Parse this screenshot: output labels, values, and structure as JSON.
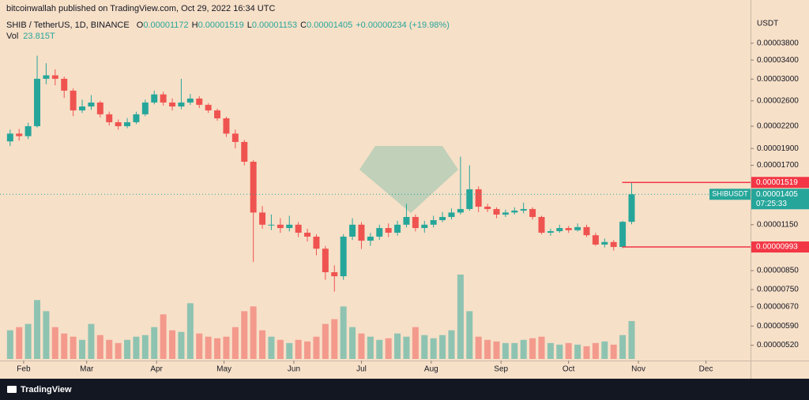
{
  "chart_data": {
    "type": "candlestick",
    "published": "bitcoinwallah published on TradingView.com, Oct 29, 2022 16:34 UTC",
    "symbol": "SHIB / TetherUS, 1D, BINANCE",
    "ohlc": [
      [
        "O",
        "0.00001172"
      ],
      [
        "H",
        "0.00001519"
      ],
      [
        "L",
        "0.00001153"
      ],
      [
        "C",
        "0.00001405"
      ]
    ],
    "change": "+0.00000234 (+19.98%)",
    "volume_label": "Vol",
    "volume_text": "23.815T",
    "currency": "USDT",
    "ticker": "SHIBUSDT",
    "countdown": "07:25:33",
    "brand": "TradingView",
    "log_scale": true,
    "up_color": "#26a69a",
    "down_color": "#ef5350",
    "x": [
      26,
      30,
      34,
      38,
      42,
      46,
      50,
      54,
      58,
      62,
      66,
      70,
      74,
      78,
      82,
      86,
      90,
      94,
      98,
      102,
      106,
      110,
      114,
      118,
      122,
      126,
      130,
      134,
      138,
      142,
      146,
      150,
      154,
      158,
      162,
      166,
      170,
      174,
      178,
      182,
      186,
      190,
      194,
      198,
      202,
      206,
      210,
      214,
      218,
      222,
      226,
      230,
      234,
      238,
      242,
      246,
      250,
      254,
      258,
      262,
      266,
      270,
      274,
      278,
      282,
      286,
      290,
      294,
      298,
      302
    ],
    "open": [
      1.99e-05,
      2.095e-05,
      2.06e-05,
      2.2e-05,
      3.006e-05,
      3.075e-05,
      3.006e-05,
      2.78e-05,
      2.441e-05,
      2.505e-05,
      2.571e-05,
      2.379e-05,
      2.258e-05,
      2.2e-05,
      2.258e-05,
      2.379e-05,
      2.571e-05,
      2.712e-05,
      2.571e-05,
      2.505e-05,
      2.571e-05,
      2.639e-05,
      2.532e-05,
      2.441e-05,
      2.317e-05,
      2.095e-05,
      1.983e-05,
      1.741e-05,
      1.246e-05,
      1.15e-05,
      1.15e-05,
      1.125e-05,
      1.15e-05,
      1.091e-05,
      1.063e-05,
      9.82e-06,
      8.41e-06,
      8.19e-06,
      1.063e-05,
      1.15e-05,
      1.035e-05,
      1.063e-05,
      1.125e-05,
      1.091e-05,
      1.15e-05,
      1.21e-05,
      1.125e-05,
      1.15e-05,
      1.185e-05,
      1.21e-05,
      1.246e-05,
      1.275e-05,
      1.452e-05,
      1.295e-05,
      1.275e-05,
      1.229e-05,
      1.246e-05,
      1.262e-05,
      1.275e-05,
      1.21e-05,
      1.091e-05,
      1.102e-05,
      1.125e-05,
      1.109e-05,
      1.132e-05,
      1.073e-05,
      1.009e-05,
      1.026e-05,
      9.93e-06,
      1.172e-05
    ],
    "high": [
      2.15e-05,
      2.16e-05,
      2.25e-05,
      3.5e-05,
      3.33e-05,
      3.2e-05,
      3.05e-05,
      2.82e-05,
      2.62e-05,
      2.7e-05,
      2.6e-05,
      2.42e-05,
      2.3e-05,
      2.32e-05,
      2.42e-05,
      2.62e-05,
      2.78e-05,
      2.76e-05,
      2.64e-05,
      3.006e-05,
      2.72e-05,
      2.68e-05,
      2.56e-05,
      2.47e-05,
      2.34e-05,
      2.15e-05,
      2.01e-05,
      1.76e-05,
      1.3e-05,
      1.23e-05,
      1.2e-05,
      1.22e-05,
      1.17e-05,
      1.12e-05,
      1.08e-05,
      1e-05,
      8.8e-06,
      1.08e-05,
      1.2e-05,
      1.17e-05,
      1.09e-05,
      1.15e-05,
      1.16e-05,
      1.18e-05,
      1.32e-05,
      1.23e-05,
      1.18e-05,
      1.22e-05,
      1.25e-05,
      1.28e-05,
      1.8e-05,
      1.7e-05,
      1.48e-05,
      1.32e-05,
      1.29e-05,
      1.27e-05,
      1.29e-05,
      1.33e-05,
      1.29e-05,
      1.22e-05,
      1.12e-05,
      1.15e-05,
      1.14e-05,
      1.16e-05,
      1.15e-05,
      1.09e-05,
      1.05e-05,
      1.04e-05,
      1.18e-05,
      1.519e-05
    ],
    "low": [
      1.93e-05,
      2e-05,
      2.02e-05,
      2.18e-05,
      2.9e-05,
      2.88e-05,
      2.65e-05,
      2.35e-05,
      2.4e-05,
      2.45e-05,
      2.33e-05,
      2.21e-05,
      2.15e-05,
      2.17e-05,
      2.23e-05,
      2.35e-05,
      2.54e-05,
      2.52e-05,
      2.44e-05,
      2.46e-05,
      2.53e-05,
      2.48e-05,
      2.4e-05,
      2.28e-05,
      2.05e-05,
      1.9e-05,
      1.7e-05,
      9e-06,
      1.12e-05,
      1.11e-05,
      1.09e-05,
      1.1e-05,
      1.06e-05,
      1.03e-05,
      9.4e-06,
      8e-06,
      7.4e-06,
      8e-06,
      1.04e-05,
      9.8e-06,
      1e-05,
      1.04e-05,
      1.06e-05,
      1.07e-05,
      1.13e-05,
      1.1e-05,
      1.09e-05,
      1.13e-05,
      1.17e-05,
      1.19e-05,
      1.23e-05,
      1.26e-05,
      1.25e-05,
      1.25e-05,
      1.2e-05,
      1.21e-05,
      1.23e-05,
      1.24e-05,
      1.19e-05,
      1.08e-05,
      1.07e-05,
      1.09e-05,
      1.09e-05,
      1.1e-05,
      1.06e-05,
      1e-05,
      9.9e-06,
      9.7e-06,
      9.85e-06,
      1.153e-05
    ],
    "close": [
      2.095e-05,
      2.06e-05,
      2.2e-05,
      3.006e-05,
      3.075e-05,
      3.006e-05,
      2.78e-05,
      2.441e-05,
      2.505e-05,
      2.571e-05,
      2.379e-05,
      2.258e-05,
      2.2e-05,
      2.258e-05,
      2.379e-05,
      2.571e-05,
      2.712e-05,
      2.571e-05,
      2.505e-05,
      2.571e-05,
      2.639e-05,
      2.532e-05,
      2.441e-05,
      2.317e-05,
      2.095e-05,
      1.983e-05,
      1.741e-05,
      1.246e-05,
      1.15e-05,
      1.15e-05,
      1.125e-05,
      1.15e-05,
      1.091e-05,
      1.063e-05,
      9.82e-06,
      8.41e-06,
      8.19e-06,
      1.063e-05,
      1.15e-05,
      1.035e-05,
      1.063e-05,
      1.125e-05,
      1.091e-05,
      1.15e-05,
      1.21e-05,
      1.125e-05,
      1.15e-05,
      1.185e-05,
      1.21e-05,
      1.246e-05,
      1.275e-05,
      1.452e-05,
      1.295e-05,
      1.275e-05,
      1.229e-05,
      1.246e-05,
      1.262e-05,
      1.275e-05,
      1.21e-05,
      1.091e-05,
      1.102e-05,
      1.125e-05,
      1.109e-05,
      1.132e-05,
      1.073e-05,
      1.009e-05,
      1.026e-05,
      9.93e-06,
      1.172e-05,
      1.405e-05
    ],
    "volume": [
      18,
      20,
      22,
      37,
      30,
      20,
      16,
      14,
      12,
      22,
      15,
      12,
      10,
      12,
      14,
      15,
      20,
      28,
      18,
      17,
      35,
      16,
      14,
      13,
      14,
      20,
      30,
      33,
      18,
      14,
      12,
      10,
      12,
      11,
      14,
      22,
      25,
      33,
      20,
      16,
      14,
      12,
      13,
      16,
      14,
      20,
      15,
      13,
      15,
      18,
      53,
      30,
      14,
      12,
      11,
      10,
      10,
      12,
      13,
      14,
      10,
      9,
      10,
      9,
      8,
      10,
      11,
      9,
      15,
      23.815
    ],
    "xlim": [
      21.5,
      354.8
    ],
    "xticks": [
      {
        "value": 32,
        "label": "Feb"
      },
      {
        "value": 60,
        "label": "Mar"
      },
      {
        "value": 91,
        "label": "Apr"
      },
      {
        "value": 121,
        "label": "May"
      },
      {
        "value": 152,
        "label": "Jun"
      },
      {
        "value": 182,
        "label": "Jul"
      },
      {
        "value": 213,
        "label": "Aug"
      },
      {
        "value": 244,
        "label": "Sep"
      },
      {
        "value": 274,
        "label": "Oct"
      },
      {
        "value": 305,
        "label": "Nov"
      },
      {
        "value": 335,
        "label": "Dec"
      }
    ],
    "ylim": [
      4.75e-06,
      5.05e-05
    ],
    "yticks": [
      {
        "value": 3.8e-05,
        "label": "0.00003800"
      },
      {
        "value": 3.4e-05,
        "label": "0.00003400"
      },
      {
        "value": 3e-05,
        "label": "0.00003000"
      },
      {
        "value": 2.6e-05,
        "label": "0.00002600"
      },
      {
        "value": 2.2e-05,
        "label": "0.00002200"
      },
      {
        "value": 1.9e-05,
        "label": "0.00001900"
      },
      {
        "value": 1.7e-05,
        "label": "0.00001700"
      },
      {
        "value": 1.15e-05,
        "label": "0.00001150"
      },
      {
        "value": 8.5e-06,
        "label": "0.00000850"
      },
      {
        "value": 7.5e-06,
        "label": "0.00000750"
      },
      {
        "value": 6.7e-06,
        "label": "0.00000670"
      },
      {
        "value": 5.9e-06,
        "label": "0.00000590"
      },
      {
        "value": 5.2e-06,
        "label": "0.00000520"
      }
    ],
    "last_price": {
      "value": 1.405e-05,
      "label": "0.00001405"
    },
    "price_lines": [
      {
        "value": 1.519e-05,
        "label": "0.00001519",
        "color": "#f23645"
      },
      {
        "value": 9.93e-06,
        "label": "0.00000993",
        "color": "#f23645"
      }
    ]
  }
}
